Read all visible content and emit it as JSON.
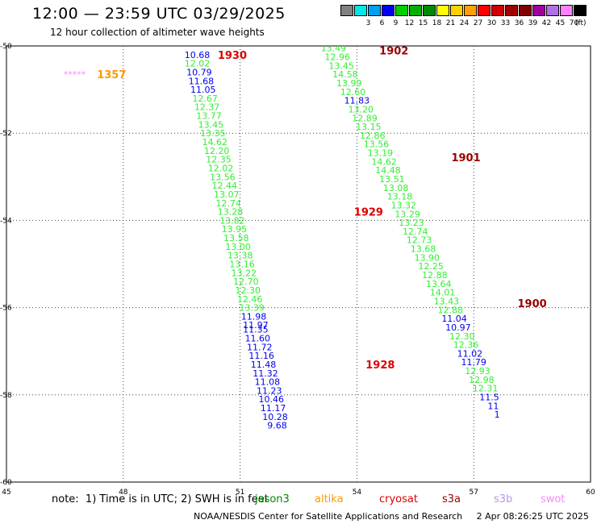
{
  "title": "12:00 — 23:59 UTC 03/29/2025",
  "subtitle": "12 hour collection of altimeter wave heights",
  "colorbar": {
    "colors": [
      "#808080",
      "#00e8e8",
      "#00a0f0",
      "#0000f0",
      "#00d000",
      "#00b000",
      "#008800",
      "#ffff00",
      "#ffd000",
      "#ffa000",
      "#ff0000",
      "#d00000",
      "#a00000",
      "#800000",
      "#a000a0",
      "#b070e8",
      "#ff80ff",
      "#000000"
    ],
    "labels": [
      "",
      "3",
      "6",
      "9",
      "12",
      "15",
      "18",
      "21",
      "24",
      "27",
      "30",
      "33",
      "36",
      "39",
      "42",
      "45",
      "70"
    ],
    "unit": "(ft)"
  },
  "note": "note:  1) Time is in UTC; 2) SWH is in feet",
  "satellites": [
    {
      "name": "jason3",
      "color": "#008800"
    },
    {
      "name": "altika",
      "color": "#ff9900"
    },
    {
      "name": "cryosat",
      "color": "#dd0000"
    },
    {
      "name": "s3a",
      "color": "#990000"
    },
    {
      "name": "s3b",
      "color": "#b898e8"
    },
    {
      "name": "swot",
      "color": "#ff88ff"
    }
  ],
  "credit": "NOAA/NESDIS Center for Satellite Applications and Research     2 Apr 08:26:25 UTC 2025",
  "chart_data": {
    "type": "scatter",
    "xlim": [
      45,
      60
    ],
    "ylim": [
      -60,
      -50
    ],
    "xticks": [
      "45",
      "48",
      "51",
      "54",
      "57",
      "60"
    ],
    "yticks": [
      "-50",
      "-52",
      "-54",
      "-56",
      "-58",
      "-60"
    ],
    "grid": true,
    "time_labels": [
      {
        "text": "1930",
        "x": 50.8,
        "y": -50.2,
        "color": "#dd0000"
      },
      {
        "text": "1357",
        "x": 47.7,
        "y": -50.65,
        "color": "#ff9900"
      },
      {
        "text": "1902",
        "x": 54.95,
        "y": -50.1,
        "color": "#990000"
      },
      {
        "text": "1901",
        "x": 56.8,
        "y": -52.55,
        "color": "#990000"
      },
      {
        "text": "1929",
        "x": 54.3,
        "y": -53.8,
        "color": "#dd0000"
      },
      {
        "text": "1900",
        "x": 58.5,
        "y": -55.9,
        "color": "#990000"
      },
      {
        "text": "1928",
        "x": 54.6,
        "y": -57.3,
        "color": "#dd0000"
      }
    ],
    "series": [
      {
        "name": "swot",
        "color": "#ff88ff",
        "points": [
          {
            "x": 46.75,
            "y": -50.65,
            "label": "*****"
          }
        ]
      },
      {
        "name": "cryosat",
        "points": [
          {
            "x": 49.9,
            "y": -50.2,
            "v": "10.68",
            "c": "#0000ee"
          },
          {
            "x": 49.9,
            "y": -50.4,
            "v": "12.02",
            "c": "#33ee33"
          },
          {
            "x": 49.95,
            "y": -50.6,
            "v": "10.79",
            "c": "#0000ee"
          },
          {
            "x": 50.0,
            "y": -50.8,
            "v": "11.68",
            "c": "#0000ee"
          },
          {
            "x": 50.05,
            "y": -51.0,
            "v": "11.05",
            "c": "#0000ee"
          },
          {
            "x": 50.1,
            "y": -51.2,
            "v": "12.67",
            "c": "#33ee33"
          },
          {
            "x": 50.15,
            "y": -51.4,
            "v": "12.37",
            "c": "#33ee33"
          },
          {
            "x": 50.2,
            "y": -51.6,
            "v": "13.77",
            "c": "#33ee33"
          },
          {
            "x": 50.25,
            "y": -51.8,
            "v": "13.45",
            "c": "#33ee33"
          },
          {
            "x": 50.3,
            "y": -52.0,
            "v": "13.35",
            "c": "#33ee33"
          },
          {
            "x": 50.35,
            "y": -52.2,
            "v": "14.62",
            "c": "#33ee33"
          },
          {
            "x": 50.4,
            "y": -52.4,
            "v": "12.20",
            "c": "#33ee33"
          },
          {
            "x": 50.45,
            "y": -52.6,
            "v": "12.35",
            "c": "#33ee33"
          },
          {
            "x": 50.5,
            "y": -52.8,
            "v": "12.02",
            "c": "#33ee33"
          },
          {
            "x": 50.55,
            "y": -53.0,
            "v": "13.56",
            "c": "#33ee33"
          },
          {
            "x": 50.6,
            "y": -53.2,
            "v": "12.44",
            "c": "#33ee33"
          },
          {
            "x": 50.65,
            "y": -53.4,
            "v": "13.07",
            "c": "#33ee33"
          },
          {
            "x": 50.7,
            "y": -53.6,
            "v": "12.74",
            "c": "#33ee33"
          },
          {
            "x": 50.75,
            "y": -53.8,
            "v": "13.28",
            "c": "#33ee33"
          },
          {
            "x": 50.8,
            "y": -54.0,
            "v": "13.82",
            "c": "#33ee33"
          },
          {
            "x": 50.85,
            "y": -54.2,
            "v": "13.95",
            "c": "#33ee33"
          },
          {
            "x": 50.9,
            "y": -54.4,
            "v": "13.58",
            "c": "#33ee33"
          },
          {
            "x": 50.95,
            "y": -54.6,
            "v": "13.00",
            "c": "#33ee33"
          },
          {
            "x": 51.0,
            "y": -54.8,
            "v": "13.38",
            "c": "#33ee33"
          },
          {
            "x": 51.05,
            "y": -55.0,
            "v": "13.16",
            "c": "#33ee33"
          },
          {
            "x": 51.1,
            "y": -55.2,
            "v": "13.22",
            "c": "#33ee33"
          },
          {
            "x": 51.15,
            "y": -55.4,
            "v": "12.70",
            "c": "#33ee33"
          },
          {
            "x": 51.2,
            "y": -55.6,
            "v": "12.30",
            "c": "#33ee33"
          },
          {
            "x": 51.25,
            "y": -55.8,
            "v": "12.46",
            "c": "#33ee33"
          },
          {
            "x": 51.3,
            "y": -56.0,
            "v": "13.39",
            "c": "#33ee33"
          },
          {
            "x": 51.35,
            "y": -56.2,
            "v": "11.98",
            "c": "#0000ee"
          },
          {
            "x": 51.4,
            "y": -56.4,
            "v": "11.97",
            "c": "#0000ee"
          },
          {
            "x": 51.4,
            "y": -56.5,
            "v": "11.35",
            "c": "#0000ee"
          },
          {
            "x": 51.45,
            "y": -56.7,
            "v": "11.60",
            "c": "#0000ee"
          },
          {
            "x": 51.5,
            "y": -56.9,
            "v": "11.72",
            "c": "#0000ee"
          },
          {
            "x": 51.55,
            "y": -57.1,
            "v": "11.16",
            "c": "#0000ee"
          },
          {
            "x": 51.6,
            "y": -57.3,
            "v": "11.48",
            "c": "#0000ee"
          },
          {
            "x": 51.65,
            "y": -57.5,
            "v": "11.32",
            "c": "#0000ee"
          },
          {
            "x": 51.7,
            "y": -57.7,
            "v": "11.08",
            "c": "#0000ee"
          },
          {
            "x": 51.75,
            "y": -57.9,
            "v": "11.23",
            "c": "#0000ee"
          },
          {
            "x": 51.8,
            "y": -58.1,
            "v": "10.46",
            "c": "#0000ee"
          },
          {
            "x": 51.85,
            "y": -58.3,
            "v": "11.17",
            "c": "#0000ee"
          },
          {
            "x": 51.9,
            "y": -58.5,
            "v": "10.28",
            "c": "#0000ee"
          },
          {
            "x": 51.95,
            "y": -58.7,
            "v": "9.68",
            "c": "#0000ee"
          }
        ]
      },
      {
        "name": "s3a",
        "points": [
          {
            "x": 53.4,
            "y": -50.05,
            "v": "13.49",
            "c": "#33ee33"
          },
          {
            "x": 53.5,
            "y": -50.25,
            "v": "12.96",
            "c": "#33ee33"
          },
          {
            "x": 53.6,
            "y": -50.45,
            "v": "13.45",
            "c": "#33ee33"
          },
          {
            "x": 53.7,
            "y": -50.65,
            "v": "14.58",
            "c": "#33ee33"
          },
          {
            "x": 53.8,
            "y": -50.85,
            "v": "13.99",
            "c": "#33ee33"
          },
          {
            "x": 53.9,
            "y": -51.05,
            "v": "12.60",
            "c": "#33ee33"
          },
          {
            "x": 54.0,
            "y": -51.25,
            "v": "11.83",
            "c": "#0000ee"
          },
          {
            "x": 54.1,
            "y": -51.45,
            "v": "13.20",
            "c": "#33ee33"
          },
          {
            "x": 54.2,
            "y": -51.65,
            "v": "12.89",
            "c": "#33ee33"
          },
          {
            "x": 54.3,
            "y": -51.85,
            "v": "13.15",
            "c": "#33ee33"
          },
          {
            "x": 54.4,
            "y": -52.05,
            "v": "12.86",
            "c": "#33ee33"
          },
          {
            "x": 54.5,
            "y": -52.25,
            "v": "13.56",
            "c": "#33ee33"
          },
          {
            "x": 54.6,
            "y": -52.45,
            "v": "13.19",
            "c": "#33ee33"
          },
          {
            "x": 54.7,
            "y": -52.65,
            "v": "14.62",
            "c": "#33ee33"
          },
          {
            "x": 54.8,
            "y": -52.85,
            "v": "14.48",
            "c": "#33ee33"
          },
          {
            "x": 54.9,
            "y": -53.05,
            "v": "13.51",
            "c": "#33ee33"
          },
          {
            "x": 55.0,
            "y": -53.25,
            "v": "13.08",
            "c": "#33ee33"
          },
          {
            "x": 55.1,
            "y": -53.45,
            "v": "13.18",
            "c": "#33ee33"
          },
          {
            "x": 55.2,
            "y": -53.65,
            "v": "13.32",
            "c": "#33ee33"
          },
          {
            "x": 55.3,
            "y": -53.85,
            "v": "13.29",
            "c": "#33ee33"
          },
          {
            "x": 55.4,
            "y": -54.05,
            "v": "13.23",
            "c": "#33ee33"
          },
          {
            "x": 55.5,
            "y": -54.25,
            "v": "12.74",
            "c": "#33ee33"
          },
          {
            "x": 55.6,
            "y": -54.45,
            "v": "12.73",
            "c": "#33ee33"
          },
          {
            "x": 55.7,
            "y": -54.65,
            "v": "13.68",
            "c": "#33ee33"
          },
          {
            "x": 55.8,
            "y": -54.85,
            "v": "13.90",
            "c": "#33ee33"
          },
          {
            "x": 55.9,
            "y": -55.05,
            "v": "12.25",
            "c": "#33ee33"
          },
          {
            "x": 56.0,
            "y": -55.25,
            "v": "12.88",
            "c": "#33ee33"
          },
          {
            "x": 56.1,
            "y": -55.45,
            "v": "13.64",
            "c": "#33ee33"
          },
          {
            "x": 56.2,
            "y": -55.65,
            "v": "14.01",
            "c": "#33ee33"
          },
          {
            "x": 56.3,
            "y": -55.85,
            "v": "13.43",
            "c": "#33ee33"
          },
          {
            "x": 56.4,
            "y": -56.05,
            "v": "12.88",
            "c": "#33ee33"
          },
          {
            "x": 56.5,
            "y": -56.25,
            "v": "11.04",
            "c": "#0000ee"
          },
          {
            "x": 56.6,
            "y": -56.45,
            "v": "10.97",
            "c": "#0000ee"
          },
          {
            "x": 56.7,
            "y": -56.65,
            "v": "12.30",
            "c": "#33ee33"
          },
          {
            "x": 56.8,
            "y": -56.85,
            "v": "12.36",
            "c": "#33ee33"
          },
          {
            "x": 56.9,
            "y": -57.05,
            "v": "11.02",
            "c": "#0000ee"
          },
          {
            "x": 57.0,
            "y": -57.25,
            "v": "11.79",
            "c": "#0000ee"
          },
          {
            "x": 57.1,
            "y": -57.45,
            "v": "12.93",
            "c": "#33ee33"
          },
          {
            "x": 57.2,
            "y": -57.65,
            "v": "12.98",
            "c": "#33ee33"
          },
          {
            "x": 57.3,
            "y": -57.85,
            "v": "12.31",
            "c": "#33ee33"
          },
          {
            "x": 57.4,
            "y": -58.05,
            "v": "11.5",
            "c": "#0000ee"
          },
          {
            "x": 57.5,
            "y": -58.25,
            "v": "11",
            "c": "#0000ee"
          },
          {
            "x": 57.6,
            "y": -58.45,
            "v": "1",
            "c": "#0000ee"
          }
        ]
      }
    ]
  }
}
